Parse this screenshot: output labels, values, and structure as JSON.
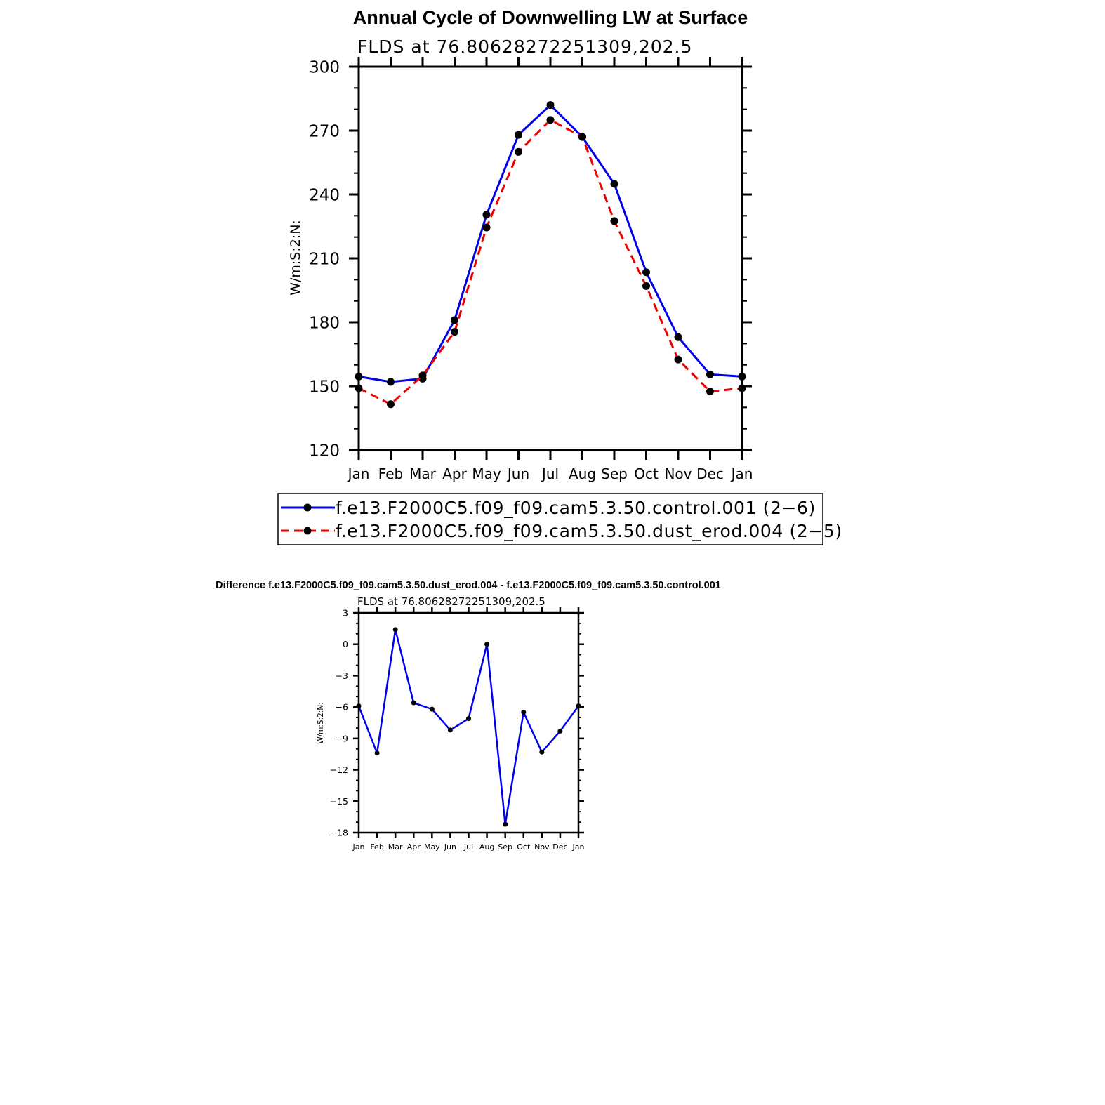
{
  "chart_data": [
    {
      "type": "line",
      "title": "Annual Cycle of Downwelling LW at Surface",
      "subtitle": "FLDS at 76.80628272251309,202.5",
      "ylabel": "W/m:S:2:N:",
      "xlabel": "",
      "categories": [
        "Jan",
        "Feb",
        "Mar",
        "Apr",
        "May",
        "Jun",
        "Jul",
        "Aug",
        "Sep",
        "Oct",
        "Nov",
        "Dec",
        "Jan"
      ],
      "ylim": [
        120,
        300
      ],
      "yticks": [
        "120",
        "150",
        "180",
        "210",
        "240",
        "270",
        "300"
      ],
      "legend_position": "below",
      "series": [
        {
          "name": "f.e13.F2000C5.f09_f09.cam5.3.50.control.001 (2−6)",
          "color": "#0000ee",
          "dash": "solid",
          "values": [
            154.5,
            152.0,
            153.5,
            181.0,
            230.5,
            268.0,
            282.0,
            267.0,
            245.0,
            203.5,
            173.0,
            155.5,
            154.5
          ]
        },
        {
          "name": "f.e13.F2000C5.f09_f09.cam5.3.50.dust_erod.004 (2−5)",
          "color": "#ee0000",
          "dash": "dashed",
          "values": [
            149.0,
            141.5,
            155.0,
            175.5,
            224.5,
            260.0,
            275.0,
            267.0,
            227.5,
            197.0,
            162.5,
            147.5,
            149.0
          ]
        }
      ]
    },
    {
      "type": "line",
      "title": "Difference f.e13.F2000C5.f09_f09.cam5.3.50.dust_erod.004 - f.e13.F2000C5.f09_f09.cam5.3.50.control.001",
      "subtitle": "FLDS at 76.80628272251309,202.5",
      "ylabel": "W/m:S:2:N:",
      "xlabel": "",
      "categories": [
        "Jan",
        "Feb",
        "Mar",
        "Apr",
        "May",
        "Jun",
        "Jul",
        "Aug",
        "Sep",
        "Oct",
        "Nov",
        "Dec",
        "Jan"
      ],
      "ylim": [
        -18,
        3
      ],
      "yticks": [
        "−18",
        "−15",
        "−12",
        "−9",
        "−6",
        "−3",
        "0",
        "3"
      ],
      "series": [
        {
          "name": "",
          "color": "#0000ee",
          "dash": "solid",
          "values": [
            -5.9,
            -10.4,
            1.4,
            -5.6,
            -6.2,
            -8.2,
            -7.1,
            0.0,
            -17.2,
            -6.5,
            -10.3,
            -8.3,
            -5.9
          ]
        }
      ]
    }
  ]
}
